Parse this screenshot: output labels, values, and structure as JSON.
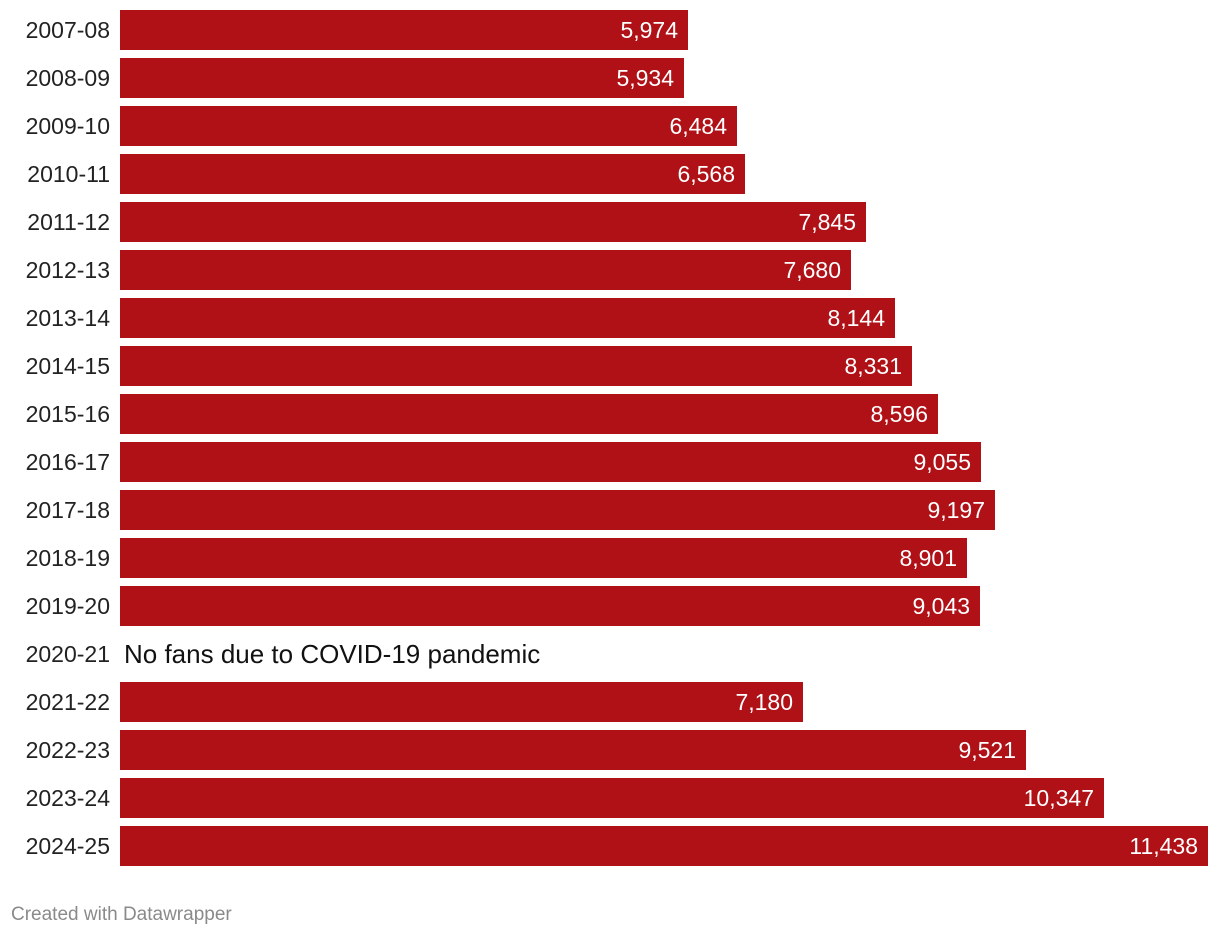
{
  "colors": {
    "bar": "#b01116",
    "value_label": "#ffffff",
    "category_label": "#222222"
  },
  "chart_data": {
    "type": "bar",
    "orientation": "horizontal",
    "title": "",
    "xlabel": "",
    "ylabel": "",
    "xlim": [
      0,
      11438
    ],
    "categories": [
      "2007-08",
      "2008-09",
      "2009-10",
      "2010-11",
      "2011-12",
      "2012-13",
      "2013-14",
      "2014-15",
      "2015-16",
      "2016-17",
      "2017-18",
      "2018-19",
      "2019-20",
      "2020-21",
      "2021-22",
      "2022-23",
      "2023-24",
      "2024-25"
    ],
    "values": [
      5974,
      5934,
      6484,
      6568,
      7845,
      7680,
      8144,
      8331,
      8596,
      9055,
      9197,
      8901,
      9043,
      null,
      7180,
      9521,
      10347,
      11438
    ],
    "value_labels": [
      "5,974",
      "5,934",
      "6,484",
      "6,568",
      "7,845",
      "7,680",
      "8,144",
      "8,331",
      "8,596",
      "9,055",
      "9,197",
      "8,901",
      "9,043",
      "",
      "7,180",
      "9,521",
      "10,347",
      "11,438"
    ],
    "annotations": [
      {
        "category": "2020-21",
        "text": "No fans due to COVID-19 pandemic"
      }
    ]
  },
  "footer": {
    "credit": "Created with Datawrapper"
  }
}
